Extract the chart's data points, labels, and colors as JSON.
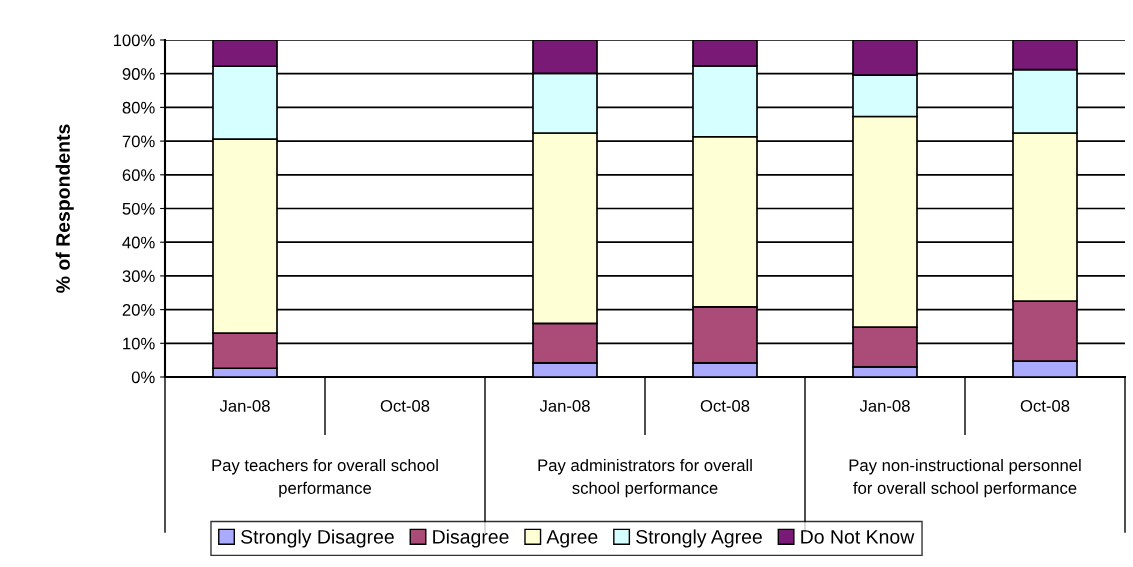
{
  "chart_data": {
    "type": "bar",
    "stacked": true,
    "ylabel": "% of Respondents",
    "categories": [
      "Jan-08",
      "Oct-08",
      "Jan-08",
      "Oct-08",
      "Jan-08",
      "Oct-08"
    ],
    "series": [
      {
        "name": "Strongly Disagree",
        "color": "#aaaaff",
        "values": [
          2.6,
          null,
          4.2,
          4.2,
          3.0,
          4.7
        ]
      },
      {
        "name": "Disagree",
        "color": "#aa4c77",
        "values": [
          10.4,
          null,
          11.7,
          16.6,
          11.8,
          17.8
        ]
      },
      {
        "name": "Agree",
        "color": "#ffffd6",
        "values": [
          57.6,
          null,
          56.5,
          50.5,
          62.5,
          49.9
        ]
      },
      {
        "name": "Strongly Agree",
        "color": "#d6ffff",
        "values": [
          21.6,
          null,
          17.7,
          21.0,
          12.3,
          18.8
        ]
      },
      {
        "name": "Do Not Know",
        "color": "#7a1a77",
        "values": [
          7.8,
          null,
          9.9,
          7.7,
          10.4,
          8.8
        ]
      }
    ],
    "ylim": [
      0,
      100
    ],
    "yticks": [
      {
        "value": 0,
        "label": "0%"
      },
      {
        "value": 10,
        "label": "10%"
      },
      {
        "value": 20,
        "label": "20%"
      },
      {
        "value": 30,
        "label": "30%"
      },
      {
        "value": 40,
        "label": "40%"
      },
      {
        "value": 50,
        "label": "50%"
      },
      {
        "value": 60,
        "label": "60%"
      },
      {
        "value": 70,
        "label": "70%"
      },
      {
        "value": 80,
        "label": "80%"
      },
      {
        "value": 90,
        "label": "90%"
      },
      {
        "value": 100,
        "label": "100%"
      }
    ],
    "annotations": [
      "Pay teachers for overall school\nperformance",
      "Pay administrators for overall\nschool performance",
      "Pay non-instructional personnel\nfor overall school performance"
    ],
    "grid": "y",
    "legend": "bottom"
  }
}
